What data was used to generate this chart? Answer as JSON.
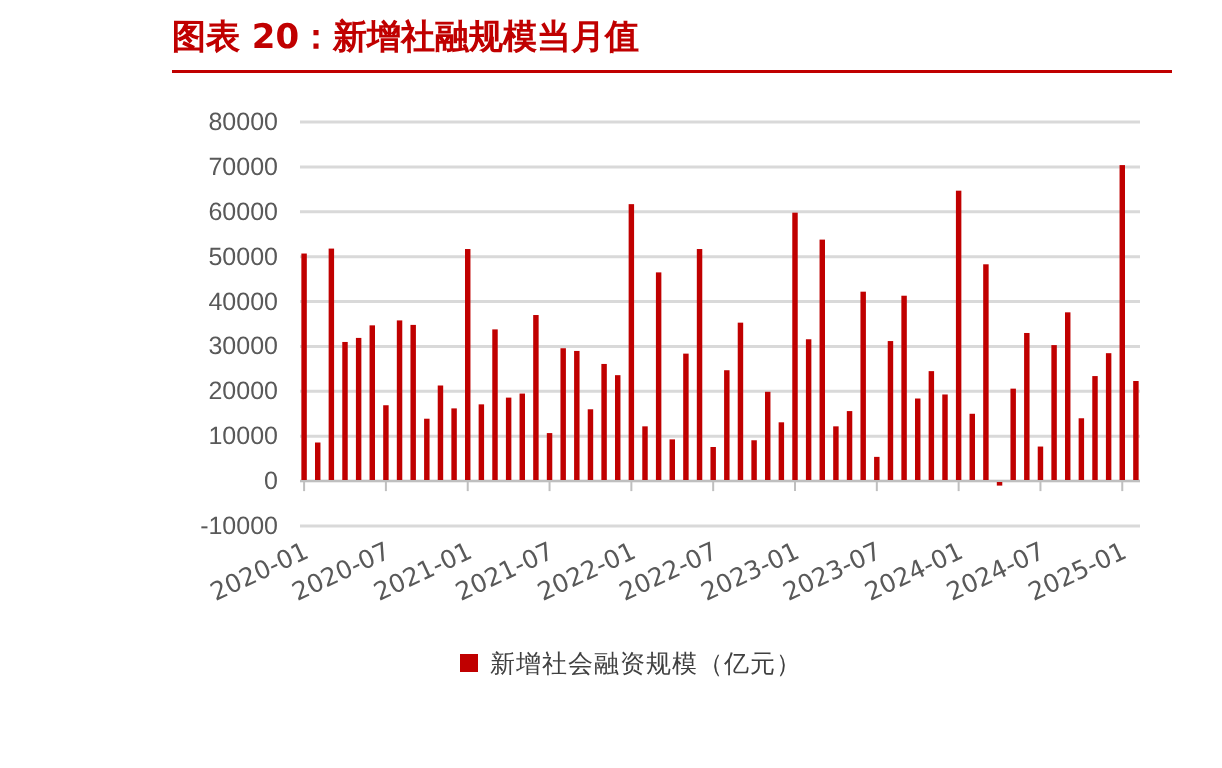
{
  "chart_data": {
    "type": "bar",
    "title": "图表 20：新增社融规模当月值",
    "categories": [
      "2020-01",
      null,
      null,
      null,
      null,
      null,
      "2020-07",
      null,
      null,
      null,
      null,
      null,
      "2021-01",
      null,
      null,
      null,
      null,
      null,
      "2021-07",
      null,
      null,
      null,
      null,
      null,
      "2022-01",
      null,
      null,
      null,
      null,
      null,
      "2022-07",
      null,
      null,
      null,
      null,
      null,
      "2023-01",
      null,
      null,
      null,
      null,
      null,
      "2023-07",
      null,
      null,
      null,
      null,
      null,
      "2024-01",
      null,
      null,
      null,
      null,
      null,
      "2024-07",
      null,
      null,
      null,
      null,
      null,
      "2025-01",
      null
    ],
    "series": [
      {
        "name": "新增社会融资规模（亿元）",
        "color": "#c00000",
        "values": [
          50700,
          8600,
          51800,
          31000,
          31900,
          34700,
          16900,
          35800,
          34800,
          13900,
          21300,
          16200,
          51700,
          17100,
          33800,
          18600,
          19500,
          37000,
          10700,
          29600,
          29000,
          16000,
          26100,
          23600,
          61700,
          12200,
          46500,
          9300,
          28400,
          51700,
          7600,
          24700,
          35300,
          9100,
          19900,
          13100,
          59800,
          31600,
          53800,
          12200,
          15600,
          42200,
          5400,
          31200,
          41300,
          18400,
          24500,
          19300,
          64700,
          15000,
          48300,
          -1000,
          20600,
          33000,
          7700,
          30300,
          37600,
          14000,
          23400,
          28500,
          70400,
          22300
        ]
      }
    ],
    "ylim": [
      -10000,
      80000
    ],
    "yticks": [
      -10000,
      0,
      10000,
      20000,
      30000,
      40000,
      50000,
      60000,
      70000,
      80000
    ],
    "grid": "y",
    "legend": "bottom"
  }
}
